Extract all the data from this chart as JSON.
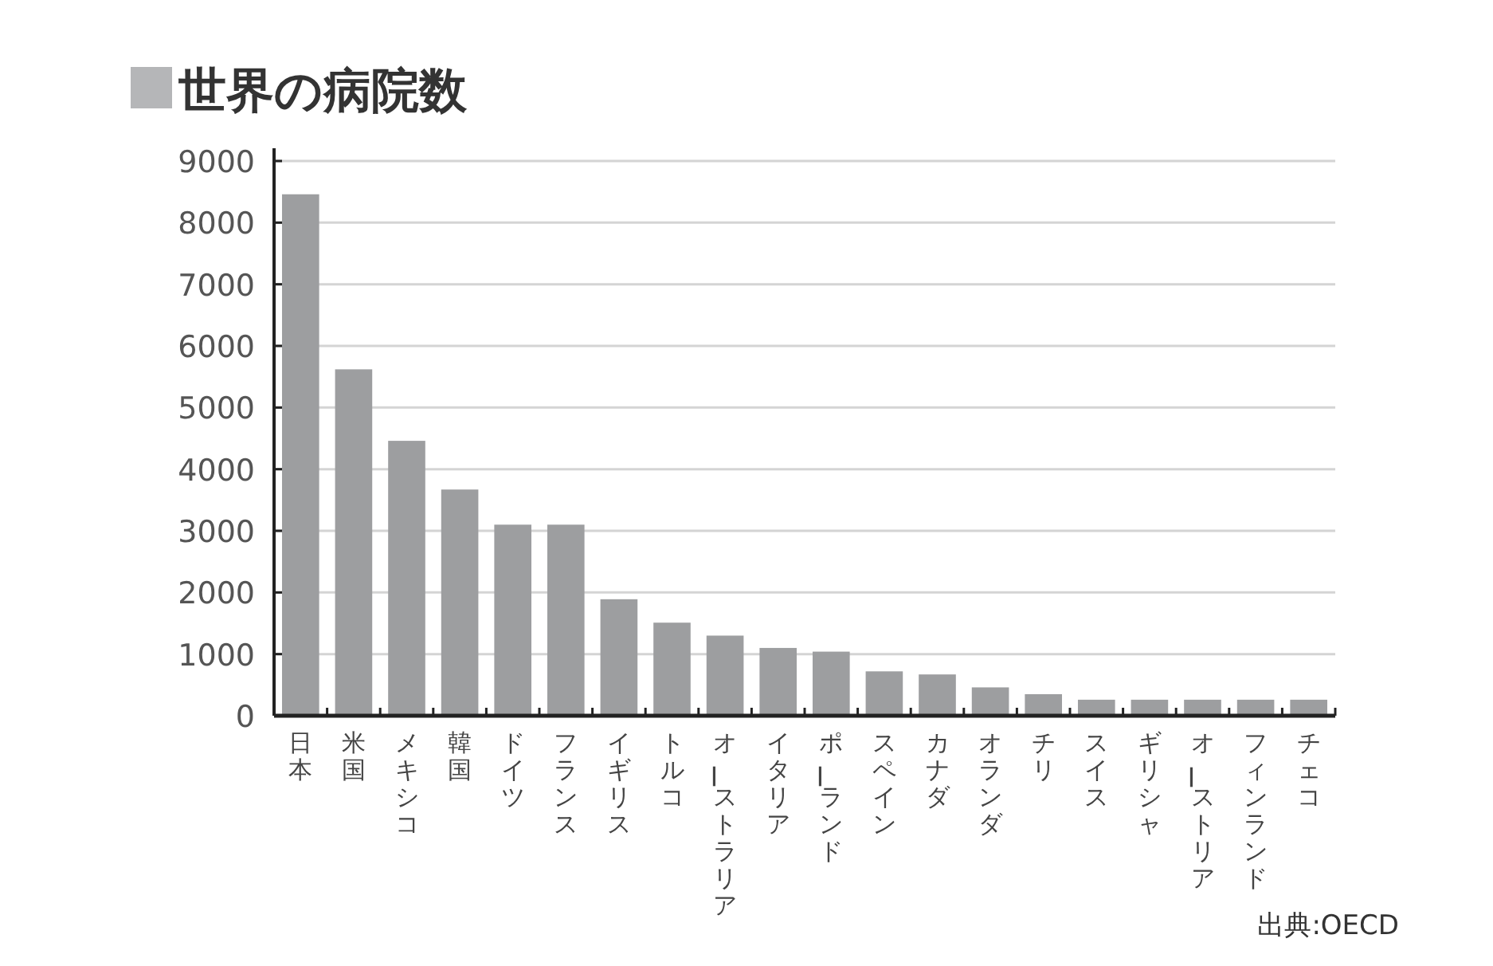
{
  "chart_data": {
    "type": "bar",
    "title": "世界の病院数",
    "categories": [
      "日本",
      "米国",
      "メキシコ",
      "韓国",
      "ドイツ",
      "フランス",
      "イギリス",
      "トルコ",
      "オーストラリア",
      "イタリア",
      "ポーランド",
      "スペイン",
      "カナダ",
      "オランダ",
      "チリ",
      "スイス",
      "ギリシャ",
      "オーストリア",
      "フィンランド",
      "チェコ"
    ],
    "values": [
      8460,
      5620,
      4460,
      3670,
      3100,
      3100,
      1890,
      1510,
      1300,
      1100,
      1040,
      720,
      670,
      460,
      350,
      260,
      260,
      260,
      260,
      260
    ],
    "color": "#9d9ea0",
    "ylim": [
      0,
      9000
    ],
    "yticks": [
      0,
      1000,
      2000,
      3000,
      4000,
      5000,
      6000,
      7000,
      8000,
      9000
    ],
    "grid": "y",
    "annotations": [
      "出典:OECD"
    ]
  }
}
